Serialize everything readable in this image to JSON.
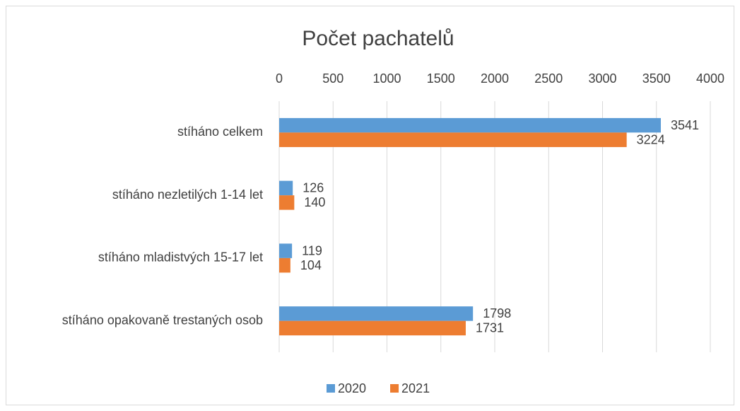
{
  "chart_data": {
    "type": "bar",
    "orientation": "horizontal",
    "title": "Počet pachatelů",
    "categories": [
      "stíháno celkem",
      "stíháno nezletilých 1-14 let",
      "stíháno mladistvých 15-17 let",
      "stíháno opakovaně trestaných osob"
    ],
    "series": [
      {
        "name": "2020",
        "color": "#5b9bd5",
        "values": [
          3541,
          126,
          119,
          1798
        ]
      },
      {
        "name": "2021",
        "color": "#ed7d31",
        "values": [
          3224,
          140,
          104,
          1731
        ]
      }
    ],
    "xlim": [
      0,
      4000
    ],
    "xticks": [
      0,
      500,
      1000,
      1500,
      2000,
      2500,
      3000,
      3500,
      4000
    ],
    "grid": true,
    "legend": "bottom"
  }
}
